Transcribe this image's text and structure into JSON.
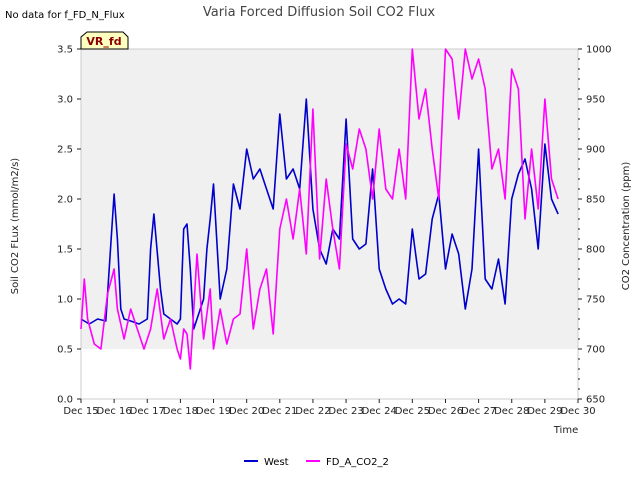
{
  "chart_data": {
    "type": "line",
    "title": "Varia Forced Diffusion Soil CO2 Flux",
    "corner_note": "No data for f_FD_N_Flux",
    "badge": "VR_fd",
    "xlabel": "Time",
    "ylabel_left": "Soil CO2 FLux (mmol/m2/s)",
    "ylabel_right": "CO2 Concentration (ppm)",
    "x_tick_labels": [
      "Dec 15",
      "Dec 16",
      "Dec 17",
      "Dec 18",
      "Dec 19",
      "Dec 20",
      "Dec 21",
      "Dec 22",
      "Dec 23",
      "Dec 24",
      "Dec 25",
      "Dec 26",
      "Dec 27",
      "Dec 28",
      "Dec 29",
      "Dec 30"
    ],
    "xlim": [
      15,
      30
    ],
    "ylim_left": [
      0,
      3.5
    ],
    "ylim_right": [
      650,
      1000
    ],
    "y_left_ticks": [
      "0.0",
      "0.5",
      "1.0",
      "1.5",
      "2.0",
      "2.5",
      "3.0",
      "3.5"
    ],
    "y_right_ticks": [
      "650",
      "700",
      "750",
      "800",
      "850",
      "900",
      "950",
      "1000"
    ],
    "grid": "alternating horizontal bands",
    "legend_position": "bottom-center",
    "series": [
      {
        "name": "West",
        "axis": "left",
        "color": "#0000cc",
        "x": [
          15.0,
          15.25,
          15.5,
          15.75,
          16.0,
          16.1,
          16.2,
          16.3,
          16.5,
          16.75,
          17.0,
          17.1,
          17.2,
          17.4,
          17.5,
          17.7,
          17.9,
          18.0,
          18.1,
          18.2,
          18.3,
          18.4,
          18.5,
          18.7,
          18.8,
          18.9,
          19.0,
          19.2,
          19.4,
          19.6,
          19.8,
          20.0,
          20.2,
          20.4,
          20.6,
          20.8,
          21.0,
          21.2,
          21.4,
          21.6,
          21.8,
          22.0,
          22.2,
          22.4,
          22.6,
          22.8,
          23.0,
          23.2,
          23.4,
          23.6,
          23.8,
          24.0,
          24.2,
          24.4,
          24.6,
          24.8,
          25.0,
          25.2,
          25.4,
          25.6,
          25.8,
          26.0,
          26.2,
          26.4,
          26.6,
          26.8,
          27.0,
          27.2,
          27.4,
          27.6,
          27.8,
          28.0,
          28.2,
          28.4,
          28.6,
          28.8,
          29.0,
          29.2,
          29.4
        ],
        "values": [
          0.8,
          0.75,
          0.8,
          0.78,
          2.05,
          1.6,
          0.9,
          0.8,
          0.78,
          0.75,
          0.8,
          1.5,
          1.85,
          1.1,
          0.85,
          0.8,
          0.75,
          0.8,
          1.7,
          1.75,
          1.3,
          0.7,
          0.8,
          1.0,
          1.5,
          1.8,
          2.15,
          1.0,
          1.3,
          2.15,
          1.9,
          2.5,
          2.2,
          2.3,
          2.1,
          1.9,
          2.85,
          2.2,
          2.3,
          2.1,
          3.0,
          1.9,
          1.5,
          1.35,
          1.7,
          1.6,
          2.8,
          1.6,
          1.5,
          1.55,
          2.3,
          1.3,
          1.1,
          0.95,
          1.0,
          0.95,
          1.7,
          1.2,
          1.25,
          1.8,
          2.05,
          1.3,
          1.65,
          1.45,
          0.9,
          1.3,
          2.5,
          1.2,
          1.1,
          1.4,
          0.95,
          2.0,
          2.25,
          2.4,
          2.1,
          1.5,
          2.55,
          2.0,
          1.85
        ]
      },
      {
        "name": "FD_A_CO2_2",
        "axis": "right",
        "color": "#ff00ff",
        "x": [
          15.0,
          15.1,
          15.2,
          15.4,
          15.6,
          15.8,
          16.0,
          16.1,
          16.3,
          16.5,
          16.7,
          16.9,
          17.1,
          17.3,
          17.5,
          17.7,
          17.9,
          18.0,
          18.1,
          18.2,
          18.3,
          18.5,
          18.7,
          18.9,
          19.0,
          19.2,
          19.4,
          19.6,
          19.8,
          20.0,
          20.2,
          20.4,
          20.6,
          20.8,
          21.0,
          21.2,
          21.4,
          21.6,
          21.8,
          22.0,
          22.2,
          22.4,
          22.6,
          22.8,
          23.0,
          23.2,
          23.4,
          23.6,
          23.8,
          24.0,
          24.2,
          24.4,
          24.6,
          24.8,
          25.0,
          25.2,
          25.4,
          25.6,
          25.8,
          26.0,
          26.2,
          26.4,
          26.6,
          26.8,
          27.0,
          27.2,
          27.4,
          27.6,
          27.8,
          28.0,
          28.2,
          28.4,
          28.6,
          28.8,
          29.0,
          29.2,
          29.4
        ],
        "values": [
          720,
          770,
          730,
          705,
          700,
          755,
          780,
          740,
          710,
          740,
          720,
          700,
          720,
          760,
          710,
          730,
          700,
          690,
          720,
          715,
          680,
          795,
          710,
          760,
          700,
          740,
          705,
          730,
          735,
          800,
          720,
          760,
          780,
          715,
          820,
          850,
          810,
          860,
          795,
          940,
          790,
          870,
          820,
          780,
          905,
          880,
          920,
          900,
          850,
          920,
          860,
          850,
          900,
          850,
          1000,
          930,
          960,
          900,
          850,
          1000,
          990,
          930,
          1000,
          970,
          990,
          960,
          880,
          900,
          850,
          980,
          960,
          830,
          900,
          840,
          950,
          870,
          850
        ]
      }
    ]
  }
}
